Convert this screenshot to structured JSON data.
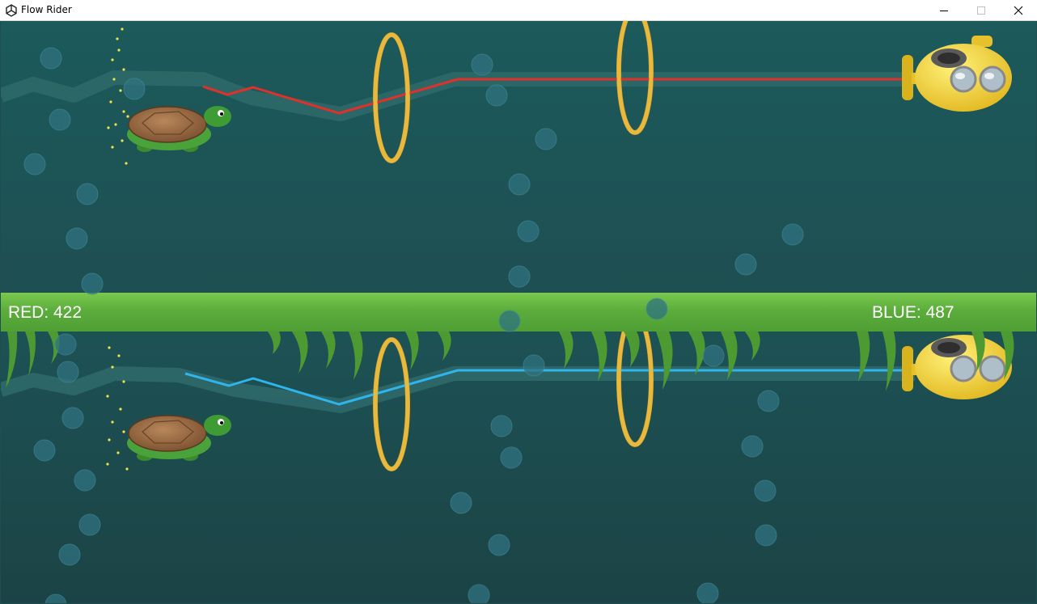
{
  "window": {
    "title": "Flow Rider",
    "icon": "unity-icon",
    "controls": [
      "minimize-icon",
      "maximize-icon",
      "close-icon"
    ]
  },
  "hud": {
    "red_score": "RED: 422",
    "blue_score": "BLUE: 487"
  },
  "players": [
    {
      "name": "red",
      "character": "turtle",
      "line_color": "#e0302a"
    },
    {
      "name": "blue",
      "character": "turtle",
      "line_color": "#2fb4ec"
    }
  ],
  "colors": {
    "water": "#1f4d50",
    "seaweed_bar": "#6ab845",
    "ring": "#e6b53a",
    "submarine": "#f2d33c"
  }
}
